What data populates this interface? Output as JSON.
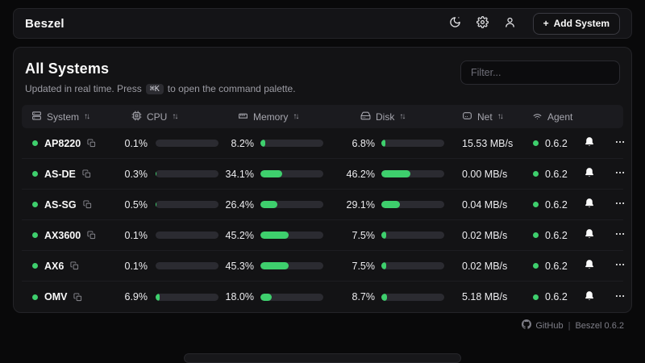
{
  "app": {
    "brand": "Beszel"
  },
  "topbar": {
    "icons": [
      "theme-toggle-icon",
      "settings-gear-icon",
      "user-icon"
    ],
    "add_system": {
      "plus": "+",
      "label": "Add System"
    }
  },
  "main": {
    "title": "All Systems",
    "subtitle_prefix": "Updated in real time. Press",
    "kbd": "⌘K",
    "subtitle_suffix": "to open the command palette.",
    "filter_placeholder": "Filter..."
  },
  "table": {
    "sort_glyph": "↑↓",
    "columns": [
      {
        "label": "System",
        "icon": "server-icon",
        "sortable": true
      },
      {
        "label": "CPU",
        "icon": "cpu-chip-icon",
        "sortable": true
      },
      {
        "label": "Memory",
        "icon": "memory-stick-icon",
        "sortable": true
      },
      {
        "label": "Disk",
        "icon": "hard-drive-icon",
        "sortable": true
      },
      {
        "label": "Net",
        "icon": "modem-icon",
        "sortable": true
      },
      {
        "label": "Agent",
        "icon": "wifi-icon",
        "sortable": false
      }
    ],
    "rows": [
      {
        "name": "AP8220",
        "status": "up",
        "cpu": "0.1%",
        "cpu_pct": 0.1,
        "memory": "8.2%",
        "memory_pct": 8.2,
        "disk": "6.8%",
        "disk_pct": 6.8,
        "net": "15.53 MB/s",
        "agent": "0.6.2"
      },
      {
        "name": "AS-DE",
        "status": "up",
        "cpu": "0.3%",
        "cpu_pct": 0.3,
        "memory": "34.1%",
        "memory_pct": 34.1,
        "disk": "46.2%",
        "disk_pct": 46.2,
        "net": "0.00 MB/s",
        "agent": "0.6.2"
      },
      {
        "name": "AS-SG",
        "status": "up",
        "cpu": "0.5%",
        "cpu_pct": 0.5,
        "memory": "26.4%",
        "memory_pct": 26.4,
        "disk": "29.1%",
        "disk_pct": 29.1,
        "net": "0.04 MB/s",
        "agent": "0.6.2"
      },
      {
        "name": "AX3600",
        "status": "up",
        "cpu": "0.1%",
        "cpu_pct": 0.1,
        "memory": "45.2%",
        "memory_pct": 45.2,
        "disk": "7.5%",
        "disk_pct": 7.5,
        "net": "0.02 MB/s",
        "agent": "0.6.2"
      },
      {
        "name": "AX6",
        "status": "up",
        "cpu": "0.1%",
        "cpu_pct": 0.1,
        "memory": "45.3%",
        "memory_pct": 45.3,
        "disk": "7.5%",
        "disk_pct": 7.5,
        "net": "0.02 MB/s",
        "agent": "0.6.2"
      },
      {
        "name": "OMV",
        "status": "up",
        "cpu": "6.9%",
        "cpu_pct": 6.9,
        "memory": "18.0%",
        "memory_pct": 18.0,
        "disk": "8.7%",
        "disk_pct": 8.7,
        "net": "5.18 MB/s",
        "agent": "0.6.2"
      }
    ]
  },
  "footer": {
    "github_label": "GitHub",
    "separator": "|",
    "version_label": "Beszel 0.6.2"
  },
  "colors": {
    "accent_green": "#3ecf6d",
    "background": "#09090a",
    "card": "#131315",
    "bar_track": "#2b2b31"
  }
}
